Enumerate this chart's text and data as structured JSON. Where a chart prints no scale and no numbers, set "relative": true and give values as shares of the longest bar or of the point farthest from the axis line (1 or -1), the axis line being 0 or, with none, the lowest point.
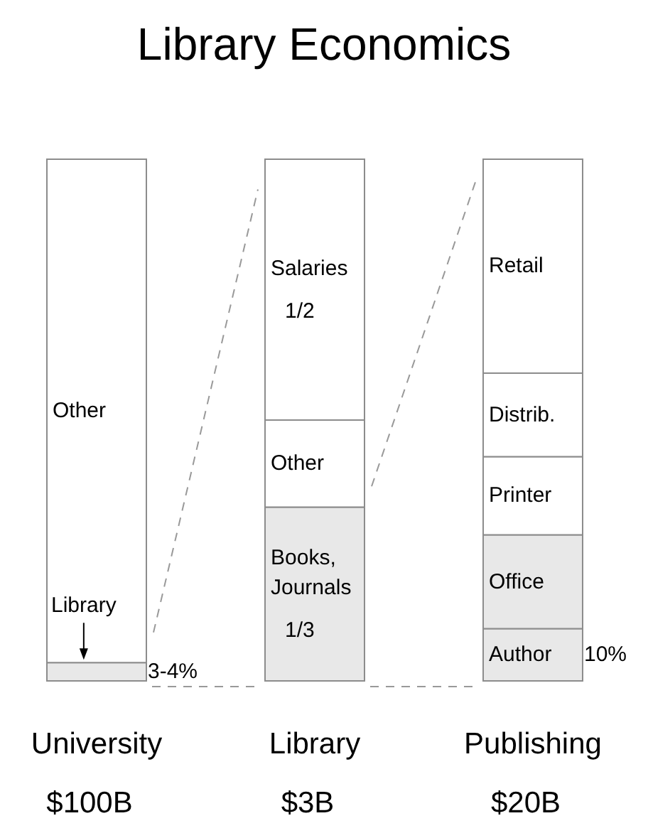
{
  "chart_data": {
    "type": "bar",
    "title": "Library Economics",
    "categories": [
      "University",
      "Library",
      "Publishing"
    ],
    "stacked": true,
    "relative": true,
    "series": [
      {
        "name": "Library",
        "color": "#e8e8e8",
        "values": [
          0.035,
          null,
          null
        ]
      },
      {
        "name": "Other",
        "color": "#ffffff",
        "values": [
          0.965,
          null,
          null
        ]
      },
      {
        "name": "Books, Journals",
        "color": "#e8e8e8",
        "values": [
          null,
          0.333,
          null
        ]
      },
      {
        "name": "Other",
        "color": "#ffffff",
        "values": [
          null,
          0.167,
          null
        ]
      },
      {
        "name": "Salaries",
        "color": "#ffffff",
        "values": [
          null,
          0.5,
          null
        ]
      },
      {
        "name": "Author",
        "color": "#e8e8e8",
        "values": [
          null,
          null,
          0.1
        ]
      },
      {
        "name": "Office",
        "color": "#e8e8e8",
        "values": [
          null,
          null,
          0.18
        ]
      },
      {
        "name": "Printer",
        "color": "#ffffff",
        "values": [
          null,
          null,
          0.15
        ]
      },
      {
        "name": "Distrib.",
        "color": "#ffffff",
        "values": [
          null,
          null,
          0.16
        ]
      },
      {
        "name": "Retail",
        "color": "#ffffff",
        "values": [
          null,
          null,
          0.41
        ]
      }
    ],
    "annotations": [
      "3-4%",
      "1/2",
      "1/3",
      "10%",
      "$100B",
      "$3B",
      "$20B"
    ]
  }
}
